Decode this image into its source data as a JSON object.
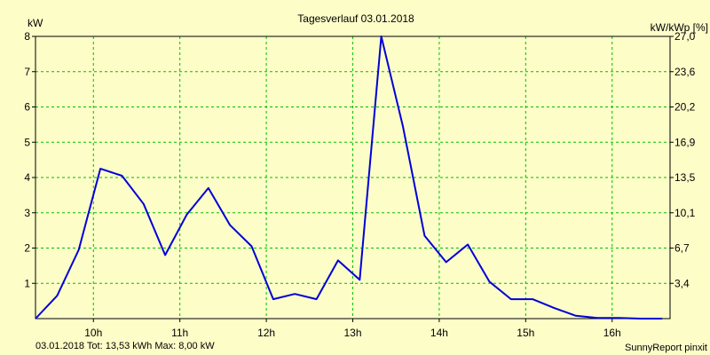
{
  "chart_data": {
    "type": "line",
    "title": "Tagesverlauf 03.01.2018",
    "ylabel_left": "kW",
    "ylabel_right": "kW/kWp [%]",
    "x_tick_labels": [
      "10h",
      "11h",
      "12h",
      "13h",
      "14h",
      "15h",
      "16h"
    ],
    "x_tick_hours": [
      10,
      11,
      12,
      13,
      14,
      15,
      16
    ],
    "xlim": [
      9.33,
      16.67
    ],
    "ylim": [
      0,
      8
    ],
    "y_tick_labels_left": [
      "1",
      "2",
      "3",
      "4",
      "5",
      "6",
      "7",
      "8"
    ],
    "y_tick_values_left": [
      1,
      2,
      3,
      4,
      5,
      6,
      7,
      8
    ],
    "y_tick_labels_right": [
      "3,4",
      "6,7",
      "10,1",
      "13,5",
      "16,9",
      "20,2",
      "23,6",
      "27,0"
    ],
    "grid": true,
    "series": [
      {
        "x": [
          9.33,
          9.58,
          9.83,
          10.08,
          10.33,
          10.58,
          10.83,
          11.08,
          11.33,
          11.58,
          11.83,
          12.08,
          12.33,
          12.58,
          12.83,
          13.08,
          13.33,
          13.58,
          13.83,
          14.08,
          14.33,
          14.58,
          14.83,
          15.08,
          15.33,
          15.58,
          15.83,
          16.08,
          16.33,
          16.58
        ],
        "y": [
          0.0,
          0.65,
          1.95,
          4.25,
          4.05,
          3.25,
          1.8,
          2.95,
          3.7,
          2.65,
          2.05,
          0.55,
          0.7,
          0.55,
          1.65,
          1.1,
          8.0,
          5.45,
          2.35,
          1.6,
          2.1,
          1.05,
          0.55,
          0.55,
          0.3,
          0.08,
          0.02,
          0.02,
          0.0,
          0.0
        ],
        "color": "#0000d8"
      }
    ]
  },
  "footer": {
    "left": "03.01.2018 Tot: 13,53 kWh Max: 8,00 kW",
    "right": "SunnyReport pinxit",
    "left_color": "#0000c0"
  },
  "colors": {
    "background": "#fdfdc8",
    "grid": "#00c000",
    "axes": "#000000"
  }
}
